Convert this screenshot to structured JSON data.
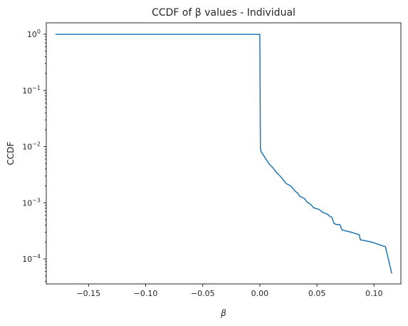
{
  "chart_data": {
    "type": "line",
    "title": "CCDF of β values - Individual",
    "xlabel": "β",
    "ylabel": "CCDF",
    "xlim": [
      -0.187,
      0.1235
    ],
    "ylim": [
      3.6e-05,
      1.6
    ],
    "yscale": "log",
    "grid": false,
    "legend": false,
    "color": "#1f77b4",
    "xticks": [
      {
        "value": -0.15,
        "label": "−0.15"
      },
      {
        "value": -0.1,
        "label": "−0.10"
      },
      {
        "value": -0.05,
        "label": "−0.05"
      },
      {
        "value": 0.0,
        "label": "0.00"
      },
      {
        "value": 0.05,
        "label": "0.05"
      },
      {
        "value": 0.1,
        "label": "0.10"
      }
    ],
    "yticks": [
      {
        "value": 1,
        "base": "10",
        "exp": "0"
      },
      {
        "value": 0.1,
        "base": "10",
        "exp": "−1"
      },
      {
        "value": 0.01,
        "base": "10",
        "exp": "−2"
      },
      {
        "value": 0.001,
        "base": "10",
        "exp": "−3"
      },
      {
        "value": 0.0001,
        "base": "10",
        "exp": "−4"
      }
    ],
    "series": [
      {
        "x": [
          -0.179,
          0.0,
          0.0005,
          0.001,
          0.003,
          0.005,
          0.007,
          0.009,
          0.011,
          0.013,
          0.015,
          0.017,
          0.019,
          0.021,
          0.023,
          0.025,
          0.027,
          0.029,
          0.031,
          0.033,
          0.035,
          0.037,
          0.039,
          0.041,
          0.043,
          0.045,
          0.047,
          0.049,
          0.051,
          0.053,
          0.055,
          0.057,
          0.059,
          0.061,
          0.063,
          0.065,
          0.067,
          0.07,
          0.072,
          0.074,
          0.08,
          0.087,
          0.088,
          0.098,
          0.11,
          0.1155
        ],
        "y": [
          1.0,
          1.0,
          0.0093,
          0.0082,
          0.0071,
          0.0062,
          0.0053,
          0.0047,
          0.0043,
          0.0038,
          0.0034,
          0.0031,
          0.0028,
          0.0025,
          0.0022,
          0.0021,
          0.002,
          0.0018,
          0.0016,
          0.0015,
          0.0013,
          0.00125,
          0.0012,
          0.00105,
          0.00098,
          0.00092,
          0.00082,
          0.00079,
          0.00078,
          0.00073,
          0.00068,
          0.00065,
          0.00063,
          0.00058,
          0.00055,
          0.00043,
          0.00041,
          0.00041,
          0.00033,
          0.00032,
          0.0003,
          0.00027,
          0.00022,
          0.0002,
          0.000165,
          5.5e-05
        ]
      }
    ]
  }
}
